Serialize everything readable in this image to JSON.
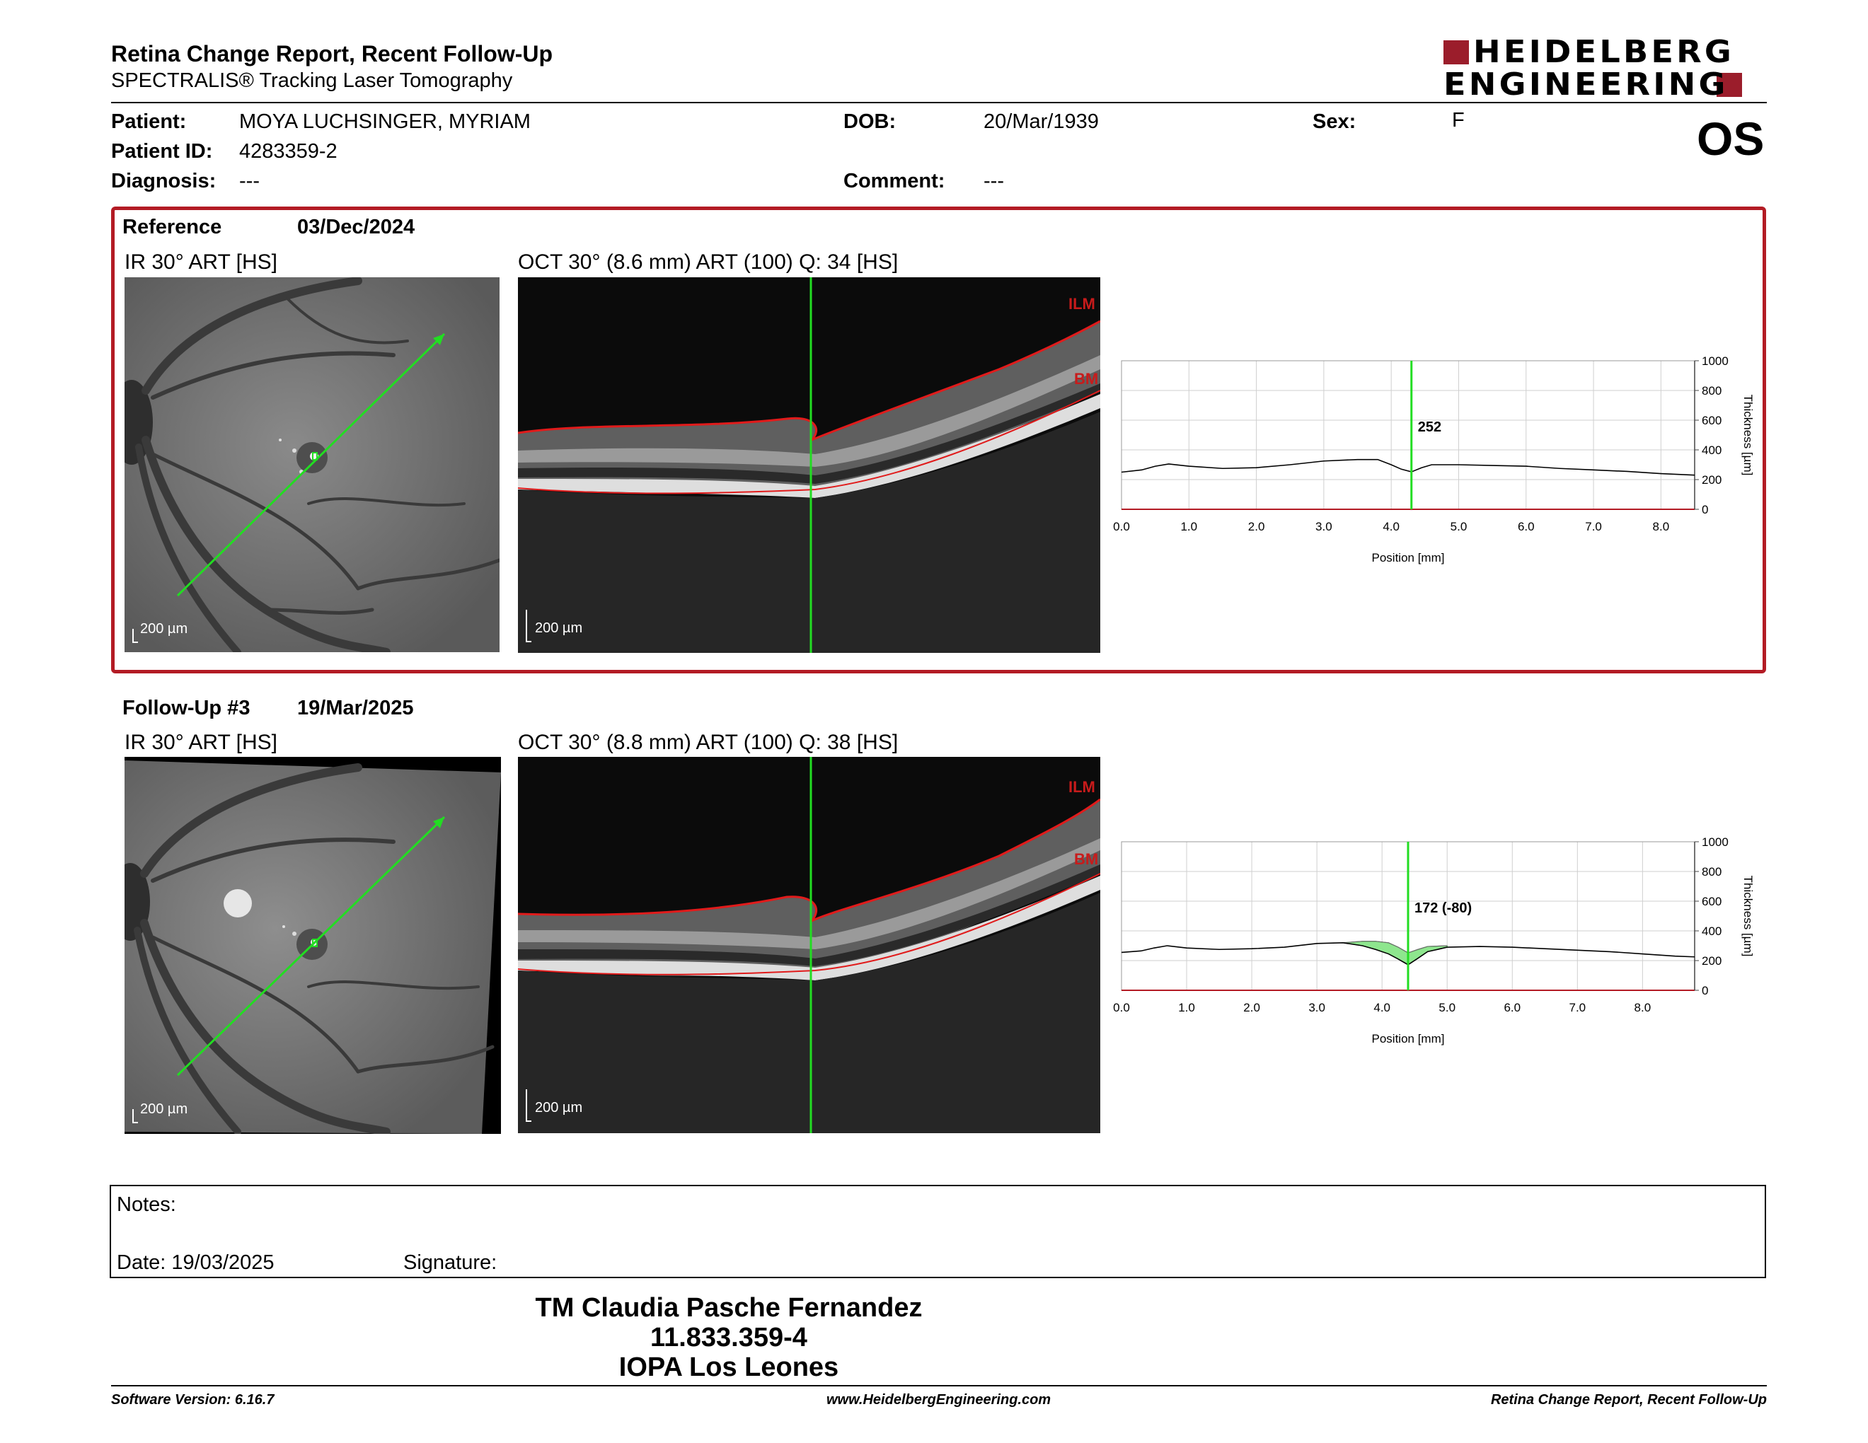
{
  "header": {
    "title": "Retina Change Report, Recent Follow-Up",
    "subtitle": "SPECTRALIS® Tracking Laser Tomography",
    "logo_line1": "HEIDELBERG",
    "logo_line2": "ENGINEERING",
    "eye": "OS"
  },
  "patient": {
    "patient_label": "Patient:",
    "patient_value": "MOYA LUCHSINGER, MYRIAM",
    "id_label": "Patient ID:",
    "id_value": "4283359-2",
    "diagnosis_label": "Diagnosis:",
    "diagnosis_value": "---",
    "dob_label": "DOB:",
    "dob_value": "20/Mar/1939",
    "comment_label": "Comment:",
    "comment_value": "---",
    "sex_label": "Sex:",
    "sex_value": "F"
  },
  "reference": {
    "label": "Reference",
    "date": "03/Dec/2024",
    "ir_caption": "IR 30° ART [HS]",
    "oct_caption": "OCT 30° (8.6 mm) ART (100) Q: 34 [HS]",
    "scale_ir": "200 µm",
    "scale_oct": "200 µm",
    "ilm_label": "ILM",
    "bm_label": "BM"
  },
  "followup": {
    "label": "Follow-Up #3",
    "date": "19/Mar/2025",
    "ir_caption": "IR 30° ART [HS]",
    "oct_caption": "OCT 30° (8.8 mm) ART (100) Q: 38 [HS]",
    "scale_ir": "200 µm",
    "scale_oct": "200 µm",
    "ilm_label": "ILM",
    "bm_label": "BM"
  },
  "chart_data": [
    {
      "type": "line",
      "xlabel": "Position [mm]",
      "ylabel": "Thickness [µm]",
      "xlim": [
        0,
        8.5
      ],
      "ylim": [
        0,
        1000
      ],
      "x_ticks": [
        "0.0",
        "1.0",
        "2.0",
        "3.0",
        "4.0",
        "5.0",
        "6.0",
        "7.0",
        "8.0"
      ],
      "y_ticks": [
        "0",
        "200",
        "400",
        "600",
        "800",
        "1000"
      ],
      "grid": true,
      "cursor_x": 4.3,
      "cursor_label": "252",
      "series": [
        {
          "x": [
            0.0,
            0.3,
            0.5,
            0.7,
            1.0,
            1.5,
            2.0,
            2.5,
            3.0,
            3.5,
            3.8,
            4.0,
            4.15,
            4.3,
            4.45,
            4.6,
            5.0,
            5.5,
            6.0,
            6.5,
            7.0,
            7.5,
            8.0,
            8.5
          ],
          "y": [
            250,
            265,
            290,
            305,
            290,
            275,
            280,
            300,
            325,
            335,
            335,
            300,
            270,
            252,
            280,
            300,
            300,
            295,
            290,
            275,
            265,
            255,
            240,
            230
          ]
        }
      ]
    },
    {
      "type": "line",
      "xlabel": "Position [mm]",
      "ylabel": "Thickness [µm]",
      "xlim": [
        0,
        8.8
      ],
      "ylim": [
        0,
        1000
      ],
      "x_ticks": [
        "0.0",
        "1.0",
        "2.0",
        "3.0",
        "4.0",
        "5.0",
        "6.0",
        "7.0",
        "8.0"
      ],
      "y_ticks": [
        "0",
        "200",
        "400",
        "600",
        "800",
        "1000"
      ],
      "grid": true,
      "cursor_x": 4.4,
      "cursor_label": "172 (-80)",
      "series": [
        {
          "x": [
            0.0,
            0.3,
            0.5,
            0.7,
            1.0,
            1.5,
            2.0,
            2.5,
            3.0,
            3.4,
            3.7,
            3.9,
            4.1,
            4.25,
            4.4,
            4.55,
            4.7,
            5.0,
            5.5,
            6.0,
            6.5,
            7.0,
            7.5,
            8.0,
            8.5,
            8.8
          ],
          "y": [
            255,
            265,
            285,
            300,
            285,
            275,
            280,
            290,
            315,
            320,
            300,
            275,
            245,
            210,
            172,
            215,
            260,
            290,
            295,
            290,
            280,
            270,
            260,
            245,
            230,
            225
          ]
        },
        {
          "x": [
            3.4,
            3.7,
            3.9,
            4.1,
            4.25,
            4.4,
            4.55,
            4.7,
            5.0
          ],
          "y": [
            320,
            330,
            330,
            320,
            290,
            252,
            275,
            295,
            300
          ]
        }
      ]
    }
  ],
  "notes": {
    "notes_label": "Notes:",
    "date_label": "Date: 19/03/2025",
    "signature_label": "Signature:"
  },
  "stamp": {
    "line1": "TM Claudia Pasche Fernandez",
    "line2": "11.833.359-4",
    "line3": "IOPA Los Leones"
  },
  "footer": {
    "version": "Software Version: 6.16.7",
    "website": "www.HeidelbergEngineering.com",
    "report_name": "Retina Change Report, Recent Follow-Up"
  },
  "colors": {
    "accent_red": "#b31b24",
    "logo_red": "#9b1d2b",
    "cursor_green": "#22dd22",
    "change_fill": "#8ee68e"
  }
}
